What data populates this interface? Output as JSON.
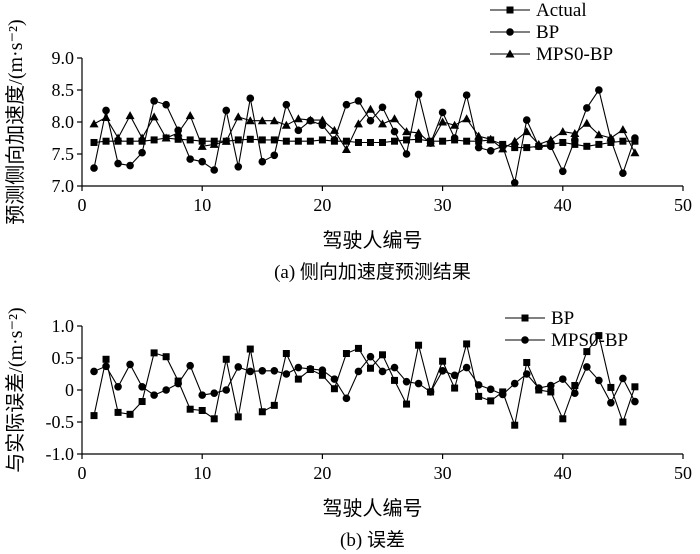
{
  "chart_data": [
    {
      "type": "line",
      "title": "",
      "caption": "(a) 侧向加速度预测结果",
      "xlabel": "驾驶人编号",
      "ylabel": "预测侧向加速度/(m·s⁻²)",
      "xlim": [
        0,
        50
      ],
      "ylim": [
        7.0,
        9.0
      ],
      "xticks": [
        "0",
        "10",
        "20",
        "30",
        "40",
        "50"
      ],
      "yticks": [
        "7.0",
        "7.5",
        "8.0",
        "8.5",
        "9.0"
      ],
      "x": [
        1,
        2,
        3,
        4,
        5,
        6,
        7,
        8,
        9,
        10,
        11,
        12,
        13,
        14,
        15,
        16,
        17,
        18,
        19,
        20,
        21,
        22,
        23,
        24,
        25,
        26,
        27,
        28,
        29,
        30,
        31,
        32,
        33,
        34,
        35,
        36,
        37,
        38,
        39,
        40,
        41,
        42,
        43,
        44,
        45,
        46
      ],
      "series": [
        {
          "name": "Actual",
          "marker": "square",
          "values": [
            7.68,
            7.7,
            7.7,
            7.7,
            7.7,
            7.72,
            7.75,
            7.73,
            7.72,
            7.7,
            7.7,
            7.7,
            7.72,
            7.73,
            7.72,
            7.72,
            7.7,
            7.7,
            7.7,
            7.72,
            7.7,
            7.7,
            7.68,
            7.68,
            7.68,
            7.7,
            7.72,
            7.73,
            7.7,
            7.7,
            7.72,
            7.7,
            7.7,
            7.72,
            7.65,
            7.6,
            7.6,
            7.62,
            7.65,
            7.68,
            7.65,
            7.62,
            7.65,
            7.68,
            7.7,
            7.7
          ]
        },
        {
          "name": "BP",
          "marker": "circle",
          "values": [
            7.28,
            8.18,
            7.35,
            7.32,
            7.52,
            8.33,
            8.27,
            7.87,
            7.42,
            7.38,
            7.25,
            8.18,
            7.3,
            8.37,
            7.38,
            7.48,
            8.27,
            7.87,
            8.02,
            7.95,
            7.72,
            8.27,
            8.33,
            8.02,
            8.23,
            7.85,
            7.5,
            8.43,
            7.67,
            8.15,
            7.75,
            8.42,
            7.6,
            7.55,
            7.62,
            7.05,
            8.03,
            7.62,
            7.62,
            7.23,
            7.72,
            8.22,
            8.5,
            7.72,
            7.2,
            7.75
          ]
        },
        {
          "name": "MPS0-BP",
          "marker": "triangle",
          "values": [
            7.97,
            8.07,
            7.75,
            8.1,
            7.75,
            8.08,
            7.75,
            7.83,
            8.1,
            7.62,
            7.65,
            7.7,
            8.08,
            8.02,
            8.02,
            8.02,
            7.95,
            8.05,
            8.03,
            8.03,
            7.87,
            7.57,
            7.97,
            8.2,
            7.97,
            8.05,
            7.85,
            7.83,
            7.67,
            8.0,
            7.95,
            8.05,
            7.78,
            7.73,
            7.58,
            7.7,
            7.85,
            7.65,
            7.72,
            7.85,
            7.82,
            7.98,
            7.8,
            7.75,
            7.88,
            7.52
          ]
        }
      ],
      "legend": "top-right"
    },
    {
      "type": "line",
      "title": "",
      "caption": "(b) 误差",
      "xlabel": "驾驶人编号",
      "ylabel": "与实际误差/(m·s⁻²)",
      "xlim": [
        0,
        50
      ],
      "ylim": [
        -1.0,
        1.0
      ],
      "xticks": [
        "0",
        "10",
        "20",
        "30",
        "40",
        "50"
      ],
      "yticks": [
        "-1.0",
        "-0.5",
        "0",
        "0.5",
        "1.0"
      ],
      "x": [
        1,
        2,
        3,
        4,
        5,
        6,
        7,
        8,
        9,
        10,
        11,
        12,
        13,
        14,
        15,
        16,
        17,
        18,
        19,
        20,
        21,
        22,
        23,
        24,
        25,
        26,
        27,
        28,
        29,
        30,
        31,
        32,
        33,
        34,
        35,
        36,
        37,
        38,
        39,
        40,
        41,
        42,
        43,
        44,
        45,
        46
      ],
      "series": [
        {
          "name": "BP",
          "marker": "square",
          "values": [
            -0.4,
            0.48,
            -0.35,
            -0.38,
            -0.18,
            0.58,
            0.52,
            0.14,
            -0.3,
            -0.32,
            -0.45,
            0.48,
            -0.42,
            0.64,
            -0.34,
            -0.24,
            0.57,
            0.17,
            0.32,
            0.23,
            0.02,
            0.57,
            0.65,
            0.34,
            0.55,
            0.15,
            -0.22,
            0.7,
            -0.03,
            0.45,
            0.03,
            0.72,
            -0.1,
            -0.17,
            -0.03,
            -0.55,
            0.43,
            0.0,
            -0.03,
            -0.45,
            0.07,
            0.6,
            0.85,
            0.04,
            -0.5,
            0.05
          ]
        },
        {
          "name": "MPS0-BP",
          "marker": "circle",
          "values": [
            0.29,
            0.37,
            0.05,
            0.4,
            0.05,
            -0.08,
            0.0,
            0.1,
            0.38,
            -0.08,
            -0.05,
            0.0,
            0.36,
            0.29,
            0.3,
            0.3,
            0.25,
            0.35,
            0.33,
            0.31,
            0.17,
            -0.13,
            0.29,
            0.52,
            0.29,
            0.35,
            0.13,
            0.1,
            -0.03,
            0.3,
            0.23,
            0.35,
            0.08,
            0.01,
            -0.07,
            0.1,
            0.25,
            0.03,
            0.07,
            0.17,
            -0.05,
            0.36,
            0.15,
            -0.2,
            0.18,
            -0.18
          ]
        }
      ],
      "legend": "top-right"
    }
  ]
}
